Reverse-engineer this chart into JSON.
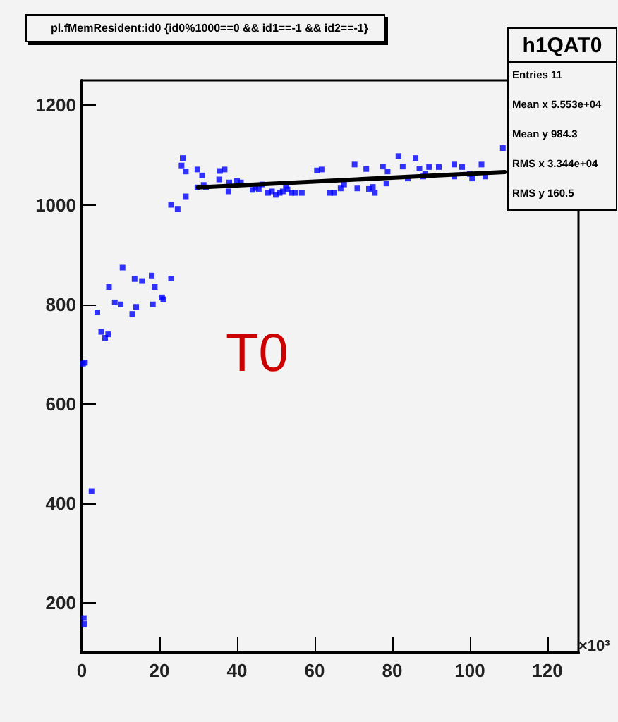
{
  "chart_data": {
    "type": "scatter",
    "title": "pl.fMemResident:id0 {id0%1000==0 && id1==-1 && id2==-1}",
    "annotations": [
      "T0",
      "×10³",
      "h1QAT0",
      "Entries 11",
      "Mean x 5.553e+04",
      "Mean y 984.3",
      "RMS x 3.344e+04",
      "RMS y 160.5"
    ],
    "xlim": [
      0,
      128
    ],
    "xticks": [
      0,
      20,
      40,
      60,
      80,
      100,
      120
    ],
    "ylim": [
      100,
      1250
    ],
    "yticks": [
      200,
      400,
      600,
      800,
      1000,
      1200
    ],
    "grid": false,
    "marker": "square",
    "series": [
      {
        "color": "#0000ff",
        "x": [
          0.5,
          0.6,
          0.3,
          0.8,
          2.5,
          4,
          5,
          6,
          6.8,
          7,
          8.5,
          10,
          10.5,
          13,
          13.6,
          14,
          15.5,
          18,
          18.3,
          18.8,
          20.7,
          21,
          23,
          23,
          24.7,
          25.7,
          26,
          26.8,
          26.8,
          29.8,
          29.8,
          31,
          31.4,
          32,
          35.4,
          35.6,
          36.8,
          37.8,
          38,
          40,
          41,
          44,
          44.7,
          45.6,
          46.5,
          48,
          49,
          50,
          51,
          51.8,
          52.6,
          53,
          54,
          55,
          56.7,
          60.6,
          61.8,
          64,
          65,
          66.7,
          67.6,
          70.3,
          71,
          73.3,
          74,
          75,
          75.5,
          77.6,
          78.5,
          78.8,
          81.6,
          82.7,
          84,
          86,
          87,
          88,
          88.5,
          89.5,
          92,
          96,
          96,
          98,
          100,
          100.6,
          103,
          104,
          108.5
        ],
        "values": [
          170,
          158,
          681,
          683,
          425,
          784,
          745,
          733,
          740,
          835,
          804,
          800,
          874,
          781,
          851,
          795,
          847,
          858,
          800,
          835,
          814,
          810,
          852,
          1000,
          992,
          1079,
          1094,
          1067,
          1017,
          1071,
          1035,
          1059,
          1040,
          1035,
          1051,
          1068,
          1071,
          1027,
          1045,
          1048,
          1045,
          1030,
          1034,
          1032,
          1041,
          1024,
          1027,
          1020,
          1024,
          1027,
          1038,
          1031,
          1024,
          1024,
          1024,
          1069,
          1071,
          1024,
          1024,
          1033,
          1041,
          1081,
          1033,
          1072,
          1032,
          1036,
          1024,
          1077,
          1043,
          1067,
          1098,
          1077,
          1053,
          1094,
          1073,
          1057,
          1063,
          1076,
          1076,
          1081,
          1057,
          1076,
          1062,
          1053,
          1081,
          1057,
          1114
        ]
      },
      {
        "type": "line",
        "color": "#000000",
        "marker": "none",
        "x": [
          30,
          109
        ],
        "values": [
          1035,
          1066
        ]
      }
    ]
  }
}
